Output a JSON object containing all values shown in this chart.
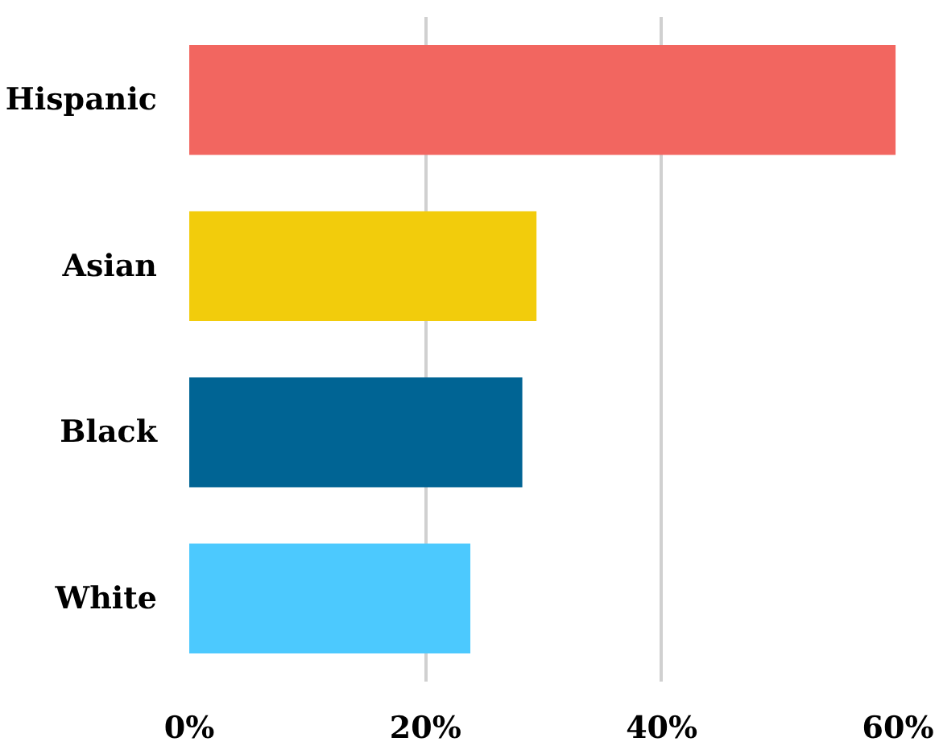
{
  "chart_data": {
    "type": "bar",
    "orientation": "horizontal",
    "categories": [
      "Hispanic",
      "Asian",
      "Black",
      "White"
    ],
    "values": [
      59.8,
      29.4,
      28.2,
      23.8
    ],
    "colors": [
      "#f26660",
      "#f2cc0c",
      "#006494",
      "#4cc9fe"
    ],
    "xlim": [
      0,
      60
    ],
    "xticks": [
      {
        "value": 0,
        "label": "0%"
      },
      {
        "value": 20,
        "label": "20%"
      },
      {
        "value": 40,
        "label": "40%"
      },
      {
        "value": 60,
        "label": "60%"
      }
    ],
    "grid": "x"
  }
}
